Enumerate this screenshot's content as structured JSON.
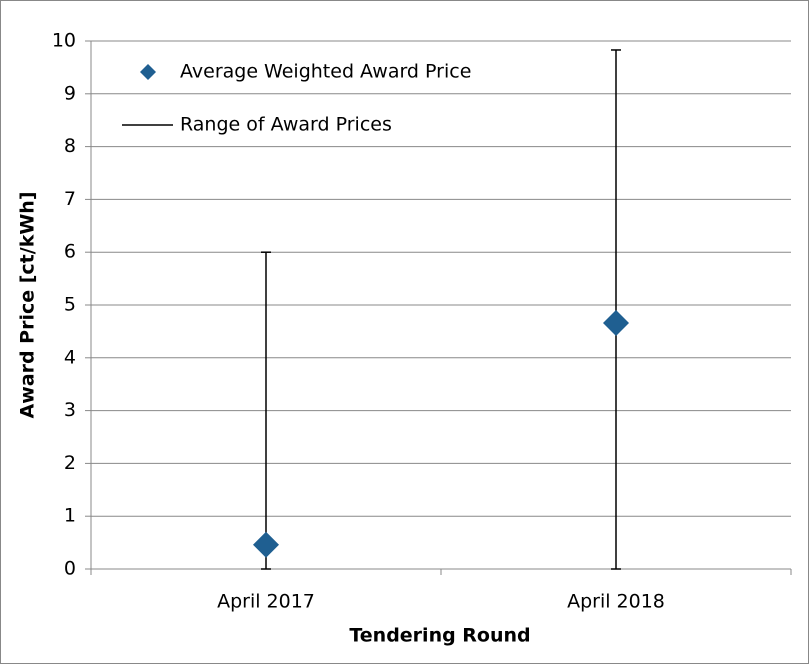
{
  "chart_data": {
    "type": "range-scatter",
    "x_label": "Tendering Round",
    "y_label": "Award Price [ct/kWh]",
    "categories": [
      "April 2017",
      "April 2018"
    ],
    "series": [
      {
        "name": "Average Weighted Award Price",
        "color": "#1f5f91",
        "values": [
          0.46,
          4.66
        ]
      },
      {
        "name": "Range of Award Prices",
        "color": "#000000",
        "low": [
          0,
          0
        ],
        "high": [
          6.0,
          9.83
        ]
      }
    ],
    "ylim": [
      0,
      10
    ],
    "yticks": [
      0,
      1,
      2,
      3,
      4,
      5,
      6,
      7,
      8,
      9,
      10
    ],
    "grid": true,
    "legend": "upper left"
  }
}
